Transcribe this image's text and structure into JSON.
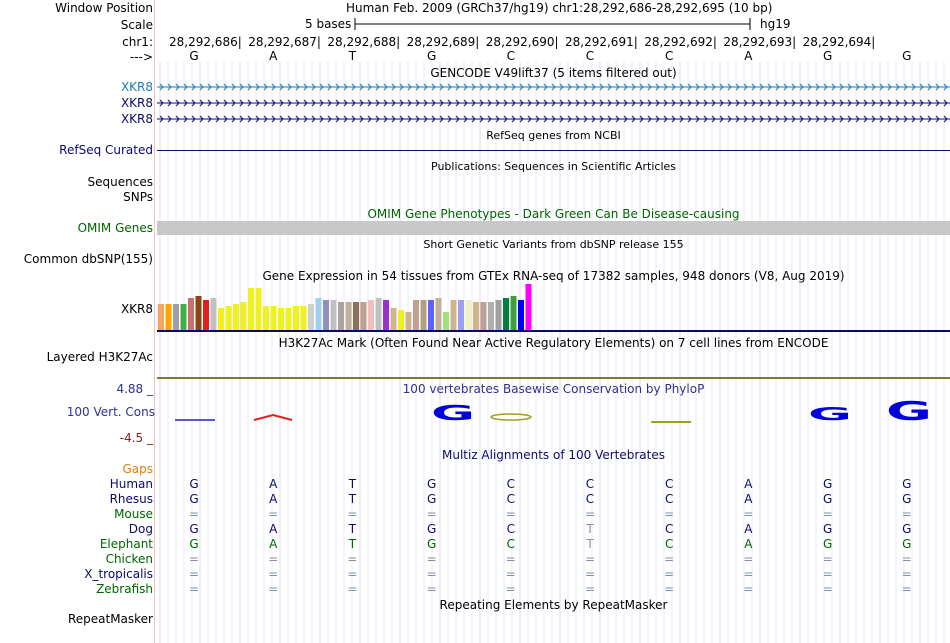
{
  "header": {
    "window_position_label": "Window Position",
    "scale_label": "Scale",
    "chr_label": "chr1:",
    "strand_label": "--->",
    "window_position_value": "Human Feb. 2009 (GRCh37/hg19)   chr1:28,292,686-28,292,695 (10 bp)",
    "scale_value": "5 bases",
    "scale_assembly": "hg19",
    "positions": [
      "28,292,686",
      "28,292,687",
      "28,292,688",
      "28,292,689",
      "28,292,690",
      "28,292,691",
      "28,292,692",
      "28,292,693",
      "28,292,694"
    ],
    "bases": [
      "G",
      "A",
      "T",
      "G",
      "C",
      "C",
      "C",
      "A",
      "G",
      "G"
    ]
  },
  "tracks": {
    "gencode_title": "GENCODE V49lift37 (5 items filtered out)",
    "gencode_items": [
      "XKR8",
      "XKR8",
      "XKR8"
    ],
    "refseq_title": "RefSeq genes from NCBI",
    "refseq_label": "RefSeq Curated",
    "publications_title": "Publications: Sequences in Scientific Articles",
    "sequences_label": "Sequences",
    "snps_label": "SNPs",
    "omim_title": "OMIM Gene Phenotypes - Dark Green Can Be Disease-causing",
    "omim_label": "OMIM Genes",
    "dbsnp_title": "Short Genetic Variants from dbSNP release 155",
    "dbsnp_label": "Common dbSNP(155)",
    "gtex_title": "Gene Expression in 54 tissues from GTEx RNA-seq of 17382 samples, 948 donors (V8, Aug 2019)",
    "gtex_label": "XKR8",
    "h3k27ac_title": "H3K27Ac Mark (Often Found Near Active Regulatory Elements) on 7 cell lines from ENCODE",
    "h3k27ac_label": "Layered H3K27Ac",
    "phylop_title": "100 vertebrates Basewise Conservation by PhyloP",
    "phylop_label": "100 Vert. Cons",
    "phylop_max": "4.88 _",
    "phylop_min": "-4.5 _",
    "multiz_title": "Multiz Alignments of 100 Vertebrates",
    "repeat_title": "Repeating Elements by RepeatMasker",
    "repeat_label": "RepeatMasker"
  },
  "gtex_bars": {
    "heights": [
      26,
      26,
      26,
      26,
      32,
      34,
      30,
      32,
      22,
      24,
      26,
      28,
      42,
      42,
      24,
      24,
      22,
      22,
      24,
      24,
      26,
      32,
      30,
      30,
      28,
      28,
      28,
      28,
      30,
      32,
      30,
      22,
      20,
      18,
      30,
      30,
      30,
      32,
      18,
      30,
      30,
      30,
      28,
      28,
      28,
      30,
      32,
      34,
      30,
      46
    ],
    "colors": [
      "#f4a460",
      "#ffa500",
      "#a0a0a0",
      "#40b040",
      "#c87070",
      "#8b4513",
      "#e02020",
      "#c0c0c0",
      "#f0f020",
      "#f0f020",
      "#f0f020",
      "#f0f020",
      "#f0f020",
      "#f0f020",
      "#f0f020",
      "#f0f020",
      "#f0f020",
      "#f0f020",
      "#f0f020",
      "#f0f020",
      "#d0d0d0",
      "#a0d0f0",
      "#9090c0",
      "#c0c0c0",
      "#b0a0a0",
      "#c0b0a0",
      "#8b7355",
      "#c0a090",
      "#f0c0c0",
      "#c0c0c0",
      "#9932cc",
      "#d2b48c",
      "#f0f020",
      "#d2b48c",
      "#c0a090",
      "#b0a080",
      "#6060ff",
      "#c0b0a0",
      "#a0e080",
      "#d2b48c",
      "#a0a0f0",
      "#f0f0c0",
      "#d2b48c",
      "#c0a090",
      "#b0b0b0",
      "#a0a0a0",
      "#008040",
      "#40a040",
      "#0000ff",
      "#ff00ff"
    ]
  },
  "multiz": {
    "gaps_label": "Gaps",
    "species": [
      {
        "name": "Human",
        "color": "#0a0a6e",
        "row": [
          "G",
          "A",
          "T",
          "G",
          "C",
          "C",
          "C",
          "A",
          "G",
          "G"
        ]
      },
      {
        "name": "Rhesus",
        "color": "#0a0a6e",
        "row": [
          "G",
          "A",
          "T",
          "G",
          "C",
          "C",
          "C",
          "A",
          "G",
          "G"
        ]
      },
      {
        "name": "Mouse",
        "color": "#006400",
        "row": [
          "=",
          "=",
          "=",
          "=",
          "=",
          "=",
          "=",
          "=",
          "=",
          "="
        ]
      },
      {
        "name": "Dog",
        "color": "#0a0a6e",
        "row": [
          "G",
          "A",
          "T",
          "G",
          "C",
          "T",
          "C",
          "A",
          "G",
          "G"
        ]
      },
      {
        "name": "Elephant",
        "color": "#006400",
        "row": [
          "G",
          "A",
          "T",
          "G",
          "C",
          "T",
          "C",
          "A",
          "G",
          "G"
        ]
      },
      {
        "name": "Chicken",
        "color": "#006400",
        "row": [
          "=",
          "=",
          "=",
          "=",
          "=",
          "=",
          "=",
          "=",
          "=",
          "="
        ]
      },
      {
        "name": "X_tropicalis",
        "color": "#0a0a6e",
        "row": [
          "=",
          "=",
          "=",
          "=",
          "=",
          "=",
          "=",
          "=",
          "=",
          "="
        ]
      },
      {
        "name": "Zebrafish",
        "color": "#006400",
        "row": [
          "=",
          "=",
          "=",
          "=",
          "=",
          "=",
          "=",
          "=",
          "=",
          "="
        ]
      }
    ]
  },
  "colors": {
    "gencode_blue": "#1a7bb5",
    "navy": "#0a0a6e",
    "omim_green": "#006400",
    "gaps_orange": "#e08000",
    "phylop_blue": "#303090",
    "phylop_red": "#8b1a1a"
  }
}
